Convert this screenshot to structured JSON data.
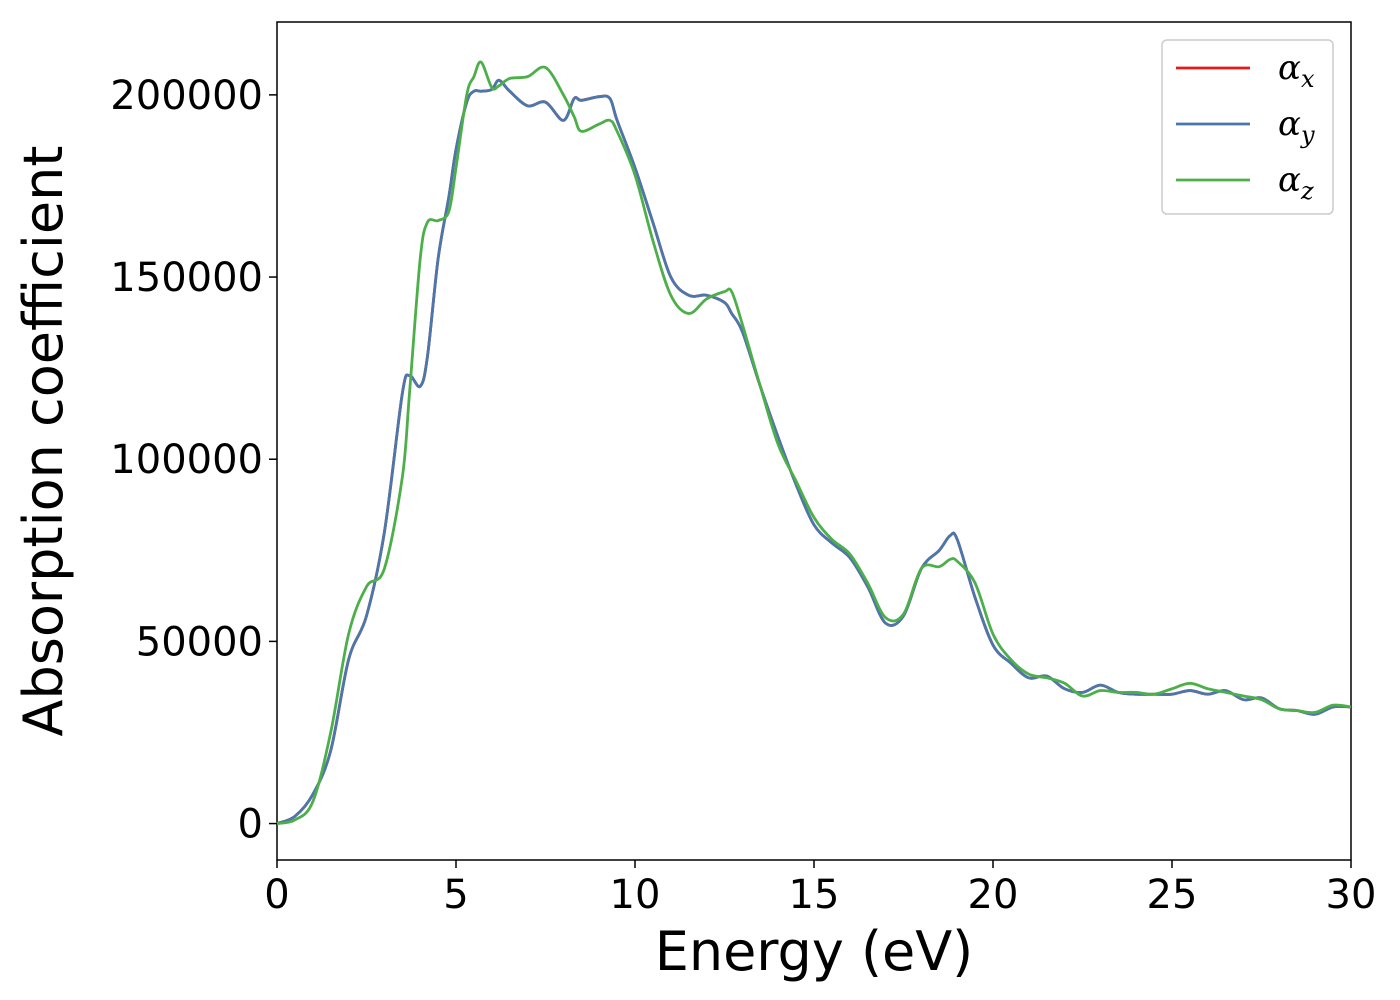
{
  "chart_data": {
    "type": "line",
    "title": "",
    "xlabel": "Energy (eV)",
    "ylabel": "Absorption coefficient",
    "xlim": [
      0,
      30
    ],
    "ylim": [
      -10000,
      220000
    ],
    "xticks": [
      0,
      5,
      10,
      15,
      20,
      25,
      30
    ],
    "xtick_labels": [
      "0",
      "5",
      "10",
      "15",
      "20",
      "25",
      "30"
    ],
    "yticks": [
      0,
      50000,
      100000,
      150000,
      200000
    ],
    "ytick_labels": [
      "0",
      "50000",
      "100000",
      "150000",
      "200000"
    ],
    "grid": false,
    "legend_position": "top-right",
    "x": [
      0,
      0.5,
      1.0,
      1.5,
      2.0,
      2.5,
      3.0,
      3.5,
      3.7,
      4.0,
      4.2,
      4.5,
      4.8,
      5.0,
      5.3,
      5.5,
      5.7,
      6.0,
      6.2,
      6.5,
      7.0,
      7.5,
      8.0,
      8.3,
      8.5,
      9.0,
      9.3,
      9.5,
      10.0,
      10.5,
      11.0,
      11.5,
      12.0,
      12.5,
      12.7,
      13.0,
      13.5,
      14.0,
      14.5,
      15.0,
      15.5,
      16.0,
      16.5,
      17.0,
      17.5,
      18.0,
      18.5,
      18.8,
      19.0,
      19.5,
      20.0,
      20.5,
      21.0,
      21.5,
      22.0,
      22.5,
      23.0,
      23.5,
      24.0,
      24.5,
      25.0,
      25.5,
      26.0,
      26.5,
      27.0,
      27.5,
      28.0,
      28.5,
      29.0,
      29.5,
      30.0
    ],
    "series": [
      {
        "name": "α",
        "subscript": "x",
        "color": "#e41a1c",
        "values": [
          0,
          2000,
          8000,
          20000,
          45000,
          57000,
          80000,
          118000,
          123000,
          120000,
          128000,
          155000,
          172000,
          185000,
          198000,
          201000,
          201000,
          201500,
          204000,
          201000,
          197000,
          198000,
          193000,
          199000,
          198500,
          199500,
          199000,
          193000,
          180000,
          165000,
          150000,
          145000,
          145000,
          143000,
          140000,
          135000,
          120000,
          106000,
          93000,
          82000,
          77000,
          73000,
          65000,
          55000,
          57000,
          70000,
          75000,
          79000,
          78000,
          62000,
          49000,
          44000,
          40000,
          40500,
          37000,
          36000,
          38000,
          36000,
          35500,
          35500,
          35500,
          36500,
          35500,
          36500,
          34000,
          34500,
          31500,
          31000,
          30000,
          32000,
          32000
        ]
      },
      {
        "name": "α",
        "subscript": "y",
        "color": "#4a78ad",
        "values": [
          0,
          2000,
          8000,
          20000,
          45000,
          57000,
          80000,
          118000,
          123000,
          120000,
          128000,
          155000,
          172000,
          185000,
          198000,
          201000,
          201000,
          201500,
          204000,
          201000,
          197000,
          198000,
          193000,
          199000,
          198500,
          199500,
          199000,
          193000,
          180000,
          165000,
          150000,
          145000,
          145000,
          143000,
          140000,
          135000,
          120000,
          106000,
          93000,
          82000,
          77000,
          73000,
          65000,
          55000,
          57000,
          70000,
          75000,
          79000,
          78000,
          62000,
          49000,
          44000,
          40000,
          40500,
          37000,
          36000,
          38000,
          36000,
          35500,
          35500,
          35500,
          36500,
          35500,
          36500,
          34000,
          34500,
          31500,
          31000,
          30000,
          32000,
          32000
        ]
      },
      {
        "name": "α",
        "subscript": "z",
        "color": "#4daf4a",
        "values": [
          0,
          1000,
          6000,
          25000,
          52000,
          65000,
          70000,
          95000,
          118000,
          155000,
          165000,
          165500,
          168000,
          180000,
          200000,
          205000,
          209000,
          202000,
          202500,
          204500,
          205000,
          207500,
          200000,
          194000,
          190000,
          192000,
          193000,
          190000,
          178000,
          160000,
          145000,
          140000,
          144000,
          146000,
          146000,
          137000,
          120000,
          104000,
          94000,
          84000,
          78000,
          74000,
          66000,
          56500,
          57500,
          70000,
          70500,
          72500,
          72000,
          66000,
          52000,
          45000,
          41000,
          40000,
          38500,
          35000,
          36500,
          36000,
          36000,
          35500,
          37000,
          38500,
          37000,
          36000,
          35000,
          34000,
          31500,
          31000,
          30500,
          32500,
          32000
        ]
      }
    ]
  }
}
